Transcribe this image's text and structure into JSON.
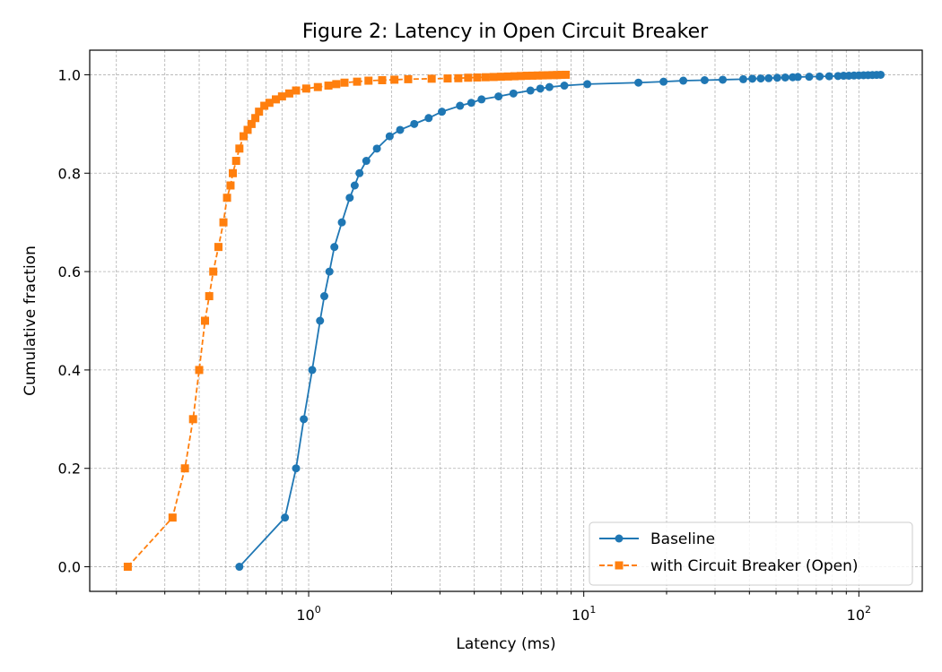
{
  "chart_data": {
    "type": "line",
    "title": "Figure 2: Latency in Open Circuit Breaker",
    "xlabel": "Latency (ms)",
    "ylabel": "Cumulative fraction",
    "xscale": "log",
    "xlim": [
      0.16,
      170
    ],
    "ylim": [
      -0.05,
      1.05
    ],
    "grid": true,
    "legend_position": "lower-right",
    "xticks": [
      {
        "value": 1,
        "base": "10",
        "exp": "0"
      },
      {
        "value": 10,
        "base": "10",
        "exp": "1"
      },
      {
        "value": 100,
        "base": "10",
        "exp": "2"
      }
    ],
    "yticks": [
      {
        "value": 0.0,
        "label": "0.0"
      },
      {
        "value": 0.2,
        "label": "0.2"
      },
      {
        "value": 0.4,
        "label": "0.4"
      },
      {
        "value": 0.6,
        "label": "0.6"
      },
      {
        "value": 0.8,
        "label": "0.8"
      },
      {
        "value": 1.0,
        "label": "1.0"
      }
    ],
    "series": [
      {
        "name": "Baseline",
        "color": "#1f77b4",
        "marker": "circle",
        "linestyle": "solid",
        "x": [
          0.56,
          0.82,
          0.9,
          0.96,
          1.03,
          1.1,
          1.14,
          1.19,
          1.24,
          1.32,
          1.41,
          1.47,
          1.53,
          1.62,
          1.77,
          1.97,
          2.15,
          2.42,
          2.73,
          3.05,
          3.55,
          3.9,
          4.25,
          4.9,
          5.55,
          6.4,
          6.95,
          7.5,
          8.5,
          10.3,
          15.8,
          19.5,
          23.0,
          27.5,
          32.0,
          38.0,
          41.0,
          44.0,
          47.0,
          50.5,
          54.0,
          57.5,
          60.0,
          66.0,
          72.0,
          78.0,
          84.0,
          88.0,
          92.0,
          96.0,
          100.0,
          104.0,
          108.0,
          112.0,
          116.0,
          120.0
        ],
        "y": [
          0.0,
          0.1,
          0.2,
          0.3,
          0.4,
          0.5,
          0.55,
          0.6,
          0.65,
          0.7,
          0.75,
          0.775,
          0.8,
          0.825,
          0.85,
          0.875,
          0.888,
          0.9,
          0.912,
          0.925,
          0.937,
          0.943,
          0.95,
          0.956,
          0.962,
          0.968,
          0.972,
          0.975,
          0.978,
          0.981,
          0.984,
          0.986,
          0.988,
          0.989,
          0.99,
          0.991,
          0.992,
          0.9925,
          0.993,
          0.994,
          0.9945,
          0.995,
          0.9955,
          0.996,
          0.9965,
          0.997,
          0.9975,
          0.998,
          0.9982,
          0.9985,
          0.9988,
          0.999,
          0.9993,
          0.9995,
          0.9998,
          1.0
        ]
      },
      {
        "name": "with Circuit Breaker (Open)",
        "color": "#ff7f0e",
        "marker": "square",
        "linestyle": "dashed",
        "x": [
          0.22,
          0.32,
          0.355,
          0.38,
          0.4,
          0.42,
          0.435,
          0.45,
          0.47,
          0.49,
          0.505,
          0.52,
          0.53,
          0.545,
          0.56,
          0.58,
          0.6,
          0.62,
          0.64,
          0.66,
          0.69,
          0.72,
          0.76,
          0.8,
          0.85,
          0.9,
          0.98,
          1.08,
          1.18,
          1.26,
          1.35,
          1.5,
          1.65,
          1.85,
          2.05,
          2.3,
          2.8,
          3.2,
          3.5,
          3.8,
          4.1,
          4.4,
          4.7,
          5.0,
          5.3,
          5.6,
          5.9,
          6.2,
          6.5,
          6.8,
          7.1,
          7.4,
          7.7,
          8.0,
          8.3,
          8.6
        ],
        "y": [
          0.0,
          0.1,
          0.2,
          0.3,
          0.4,
          0.5,
          0.55,
          0.6,
          0.65,
          0.7,
          0.75,
          0.775,
          0.8,
          0.825,
          0.85,
          0.875,
          0.888,
          0.9,
          0.912,
          0.925,
          0.937,
          0.943,
          0.95,
          0.956,
          0.962,
          0.968,
          0.972,
          0.975,
          0.978,
          0.981,
          0.984,
          0.986,
          0.988,
          0.989,
          0.99,
          0.991,
          0.992,
          0.9925,
          0.993,
          0.994,
          0.9945,
          0.995,
          0.9955,
          0.996,
          0.9965,
          0.997,
          0.9975,
          0.998,
          0.9982,
          0.9985,
          0.9988,
          0.999,
          0.9993,
          0.9995,
          0.9998,
          1.0
        ]
      }
    ]
  }
}
